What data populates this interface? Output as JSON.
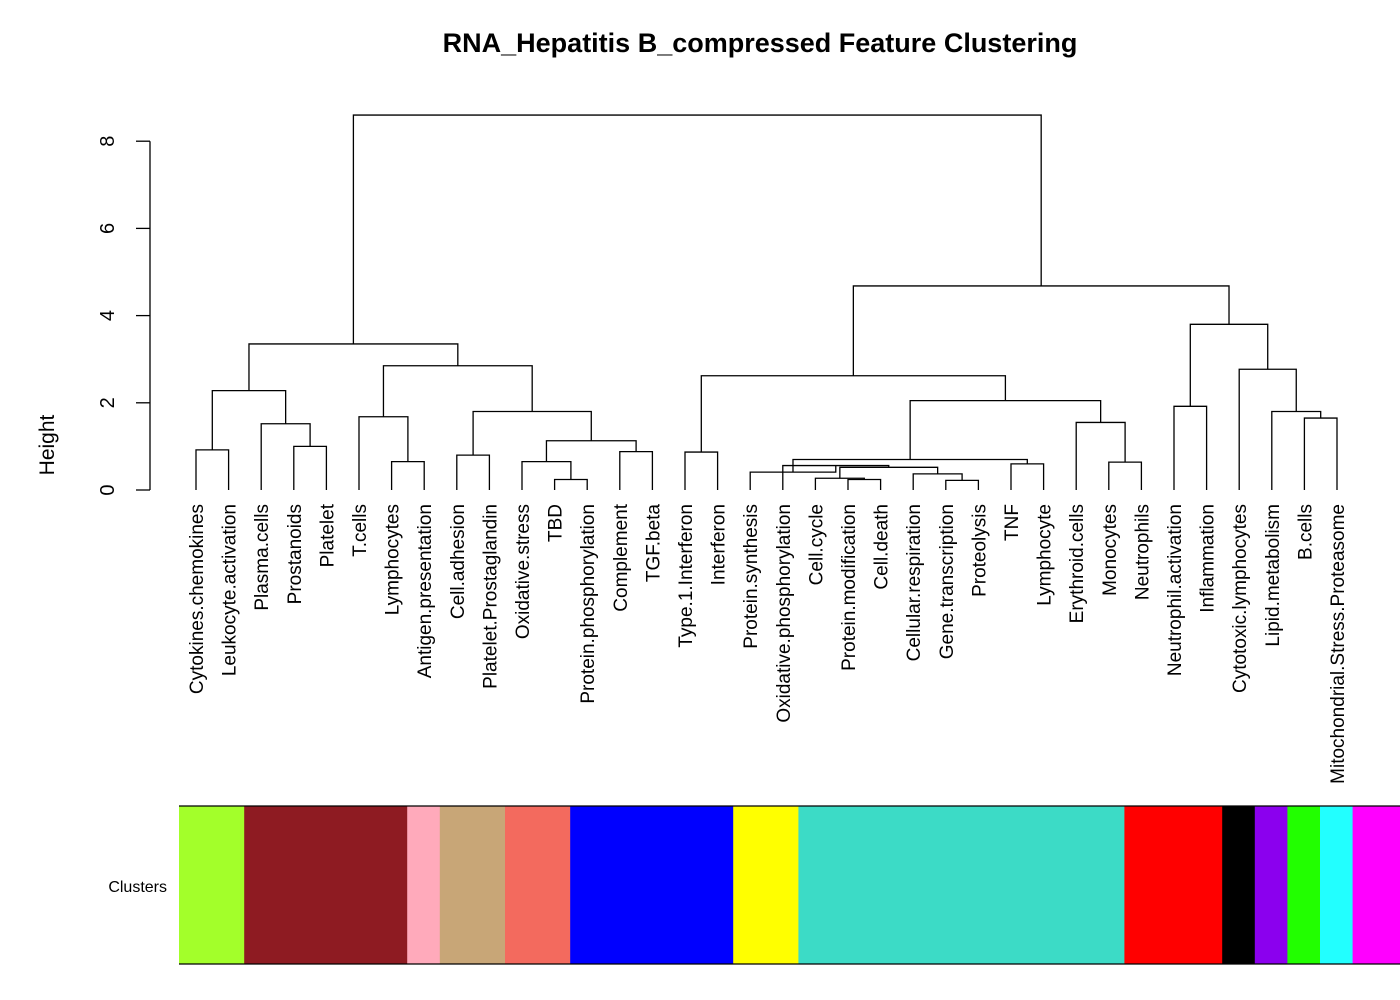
{
  "chart_data": {
    "type": "dendrogram",
    "title": "RNA_Hepatitis B_compressed Feature Clustering",
    "ylabel": "Height",
    "ylim": [
      0,
      9
    ],
    "yticks": [
      0,
      2,
      4,
      6,
      8
    ],
    "leaves": [
      "Cytokines.chemokines",
      "Leukocyte.activation",
      "Plasma.cells",
      "Prostanoids",
      "Platelet",
      "T.cells",
      "Lymphocytes",
      "Antigen.presentation",
      "Cell.adhesion",
      "Platelet.Prostaglandin",
      "Oxidative.stress",
      "TBD",
      "Protein.phosphorylation",
      "Complement",
      "TGF.beta",
      "Type.1.Interferon",
      "Interferon",
      "Protein.synthesis",
      "Oxidative.phosphorylation",
      "Cell.cycle",
      "Protein.modification",
      "Cell.death",
      "Cellular.respiration",
      "Gene.transcription",
      "Proteolysis",
      "TNF",
      "Lymphocyte",
      "Erythroid.cells",
      "Monocytes",
      "Neutrophils",
      "Neutrophil.activation",
      "Inflammation",
      "Cytotoxic.lymphocytes",
      "Lipid.metabolism",
      "B.cells",
      "Mitochondrial.Stress.Proteasome"
    ],
    "merges": [
      {
        "a": 0,
        "b": 1,
        "height": 0.92
      },
      {
        "a": 3,
        "b": 4,
        "height": 1.0
      },
      {
        "a": 2,
        "b": 37,
        "height": 1.52
      },
      {
        "a": 36,
        "b": 38,
        "height": 2.28
      },
      {
        "a": 6,
        "b": 7,
        "height": 0.65
      },
      {
        "a": 5,
        "b": 40,
        "height": 1.68
      },
      {
        "a": 8,
        "b": 9,
        "height": 0.8
      },
      {
        "a": 11,
        "b": 12,
        "height": 0.24
      },
      {
        "a": 10,
        "b": 43,
        "height": 0.65
      },
      {
        "a": 13,
        "b": 14,
        "height": 0.88
      },
      {
        "a": 44,
        "b": 45,
        "height": 1.13
      },
      {
        "a": 42,
        "b": 46,
        "height": 1.8
      },
      {
        "a": 41,
        "b": 47,
        "height": 2.85
      },
      {
        "a": 39,
        "b": 48,
        "height": 3.35
      },
      {
        "a": 15,
        "b": 16,
        "height": 0.87
      },
      {
        "a": 20,
        "b": 21,
        "height": 0.24
      },
      {
        "a": 19,
        "b": 51,
        "height": 0.27
      },
      {
        "a": 23,
        "b": 24,
        "height": 0.22
      },
      {
        "a": 22,
        "b": 53,
        "height": 0.37
      },
      {
        "a": 52,
        "b": 54,
        "height": 0.52
      },
      {
        "a": 18,
        "b": 55,
        "height": 0.56
      },
      {
        "a": 17,
        "b": 56,
        "height": 0.41
      },
      {
        "a": 25,
        "b": 26,
        "height": 0.6
      },
      {
        "a": 57,
        "b": 58,
        "height": 0.7
      },
      {
        "a": 28,
        "b": 29,
        "height": 0.64
      },
      {
        "a": 27,
        "b": 60,
        "height": 1.55
      },
      {
        "a": 59,
        "b": 61,
        "height": 2.05
      },
      {
        "a": 50,
        "b": 62,
        "height": 2.62
      },
      {
        "a": 30,
        "b": 31,
        "height": 1.92
      },
      {
        "a": 34,
        "b": 35,
        "height": 1.65
      },
      {
        "a": 33,
        "b": 65,
        "height": 1.8
      },
      {
        "a": 32,
        "b": 66,
        "height": 2.77
      },
      {
        "a": 64,
        "b": 67,
        "height": 3.8
      },
      {
        "a": 63,
        "b": 68,
        "height": 4.68
      },
      {
        "a": 49,
        "b": 69,
        "height": 8.6
      }
    ],
    "clusters": {
      "label": "Clusters",
      "segments": [
        {
          "size": 2,
          "color": "#A3FF2A"
        },
        {
          "size": 5,
          "color": "#8E1B22"
        },
        {
          "size": 1,
          "color": "#FFAABB"
        },
        {
          "size": 2,
          "color": "#C8A677"
        },
        {
          "size": 2,
          "color": "#F36A5E"
        },
        {
          "size": 5,
          "color": "#0000FF"
        },
        {
          "size": 2,
          "color": "#FFFF00"
        },
        {
          "size": 10,
          "color": "#3CDBC6"
        },
        {
          "size": 3,
          "color": "#FF0000"
        },
        {
          "size": 1,
          "color": "#000000"
        },
        {
          "size": 1,
          "color": "#8B00EE"
        },
        {
          "size": 1,
          "color": "#22FF00"
        },
        {
          "size": 1,
          "color": "#22FFFF"
        },
        {
          "size": 2,
          "color": "#FF00FF"
        }
      ]
    }
  }
}
